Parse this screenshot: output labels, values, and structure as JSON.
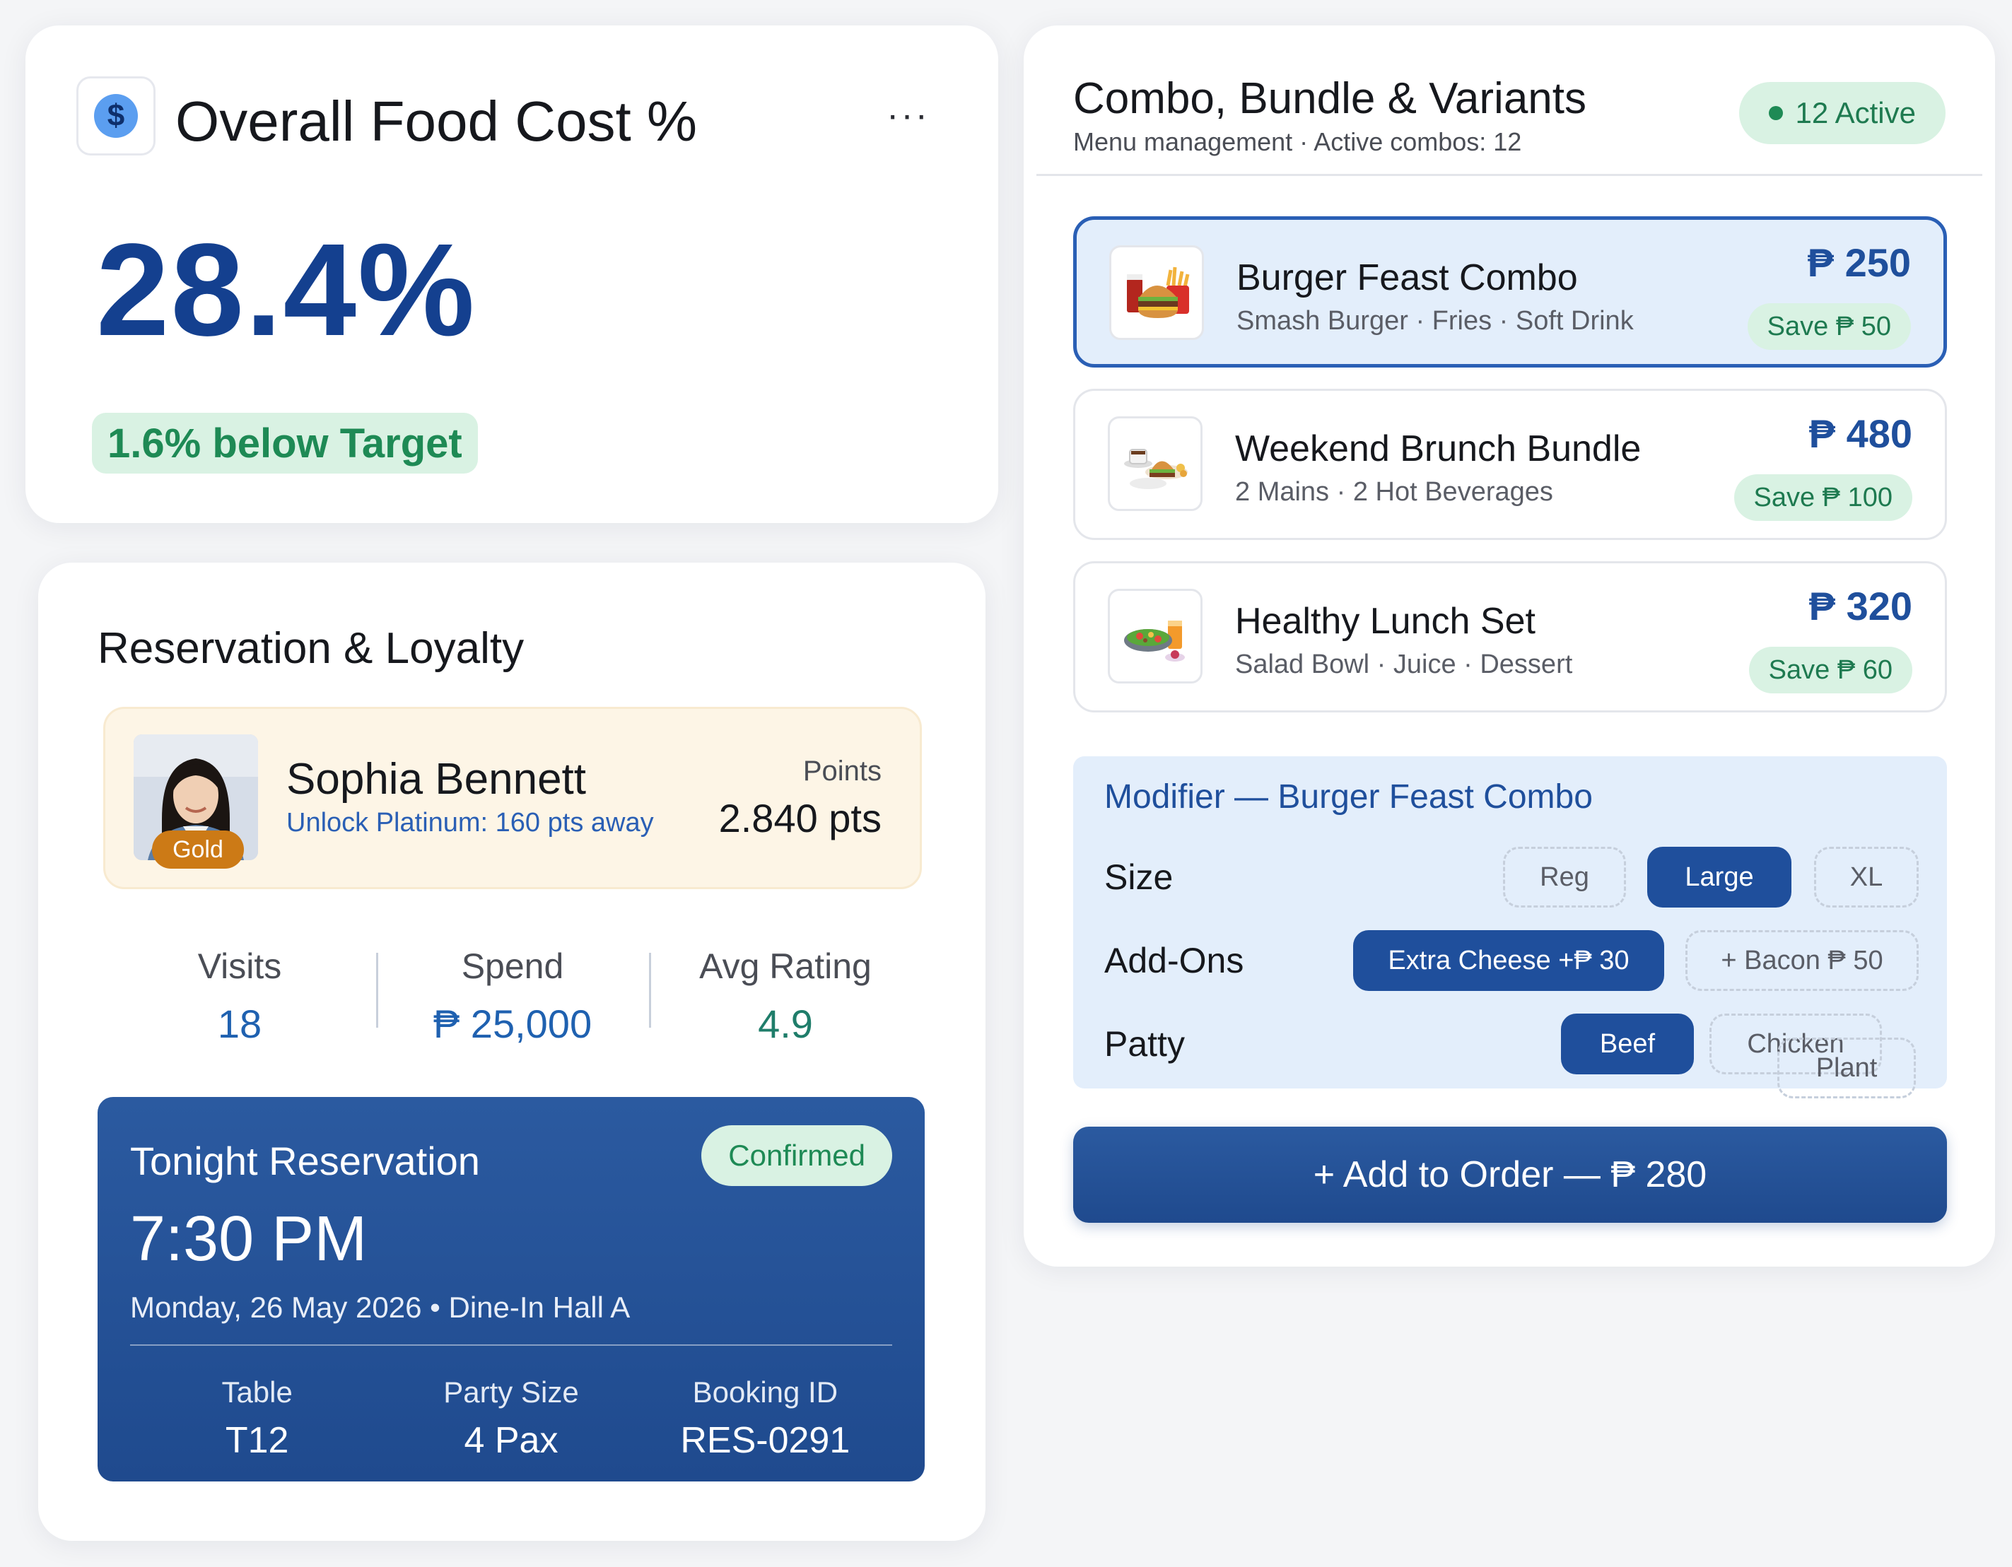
{
  "food_cost": {
    "title": "Overall Food Cost %",
    "value": "28.4%",
    "badge": "1.6% below Target",
    "menu_label": "···"
  },
  "reservation_loyalty": {
    "title": "Reservation & Loyalty",
    "member": {
      "name": "Sophia Bennett",
      "tier": "Gold",
      "unlock_text": "Unlock Platinum: 160 pts away",
      "points_label": "Points",
      "points_value": "2.840 pts"
    },
    "stats": [
      {
        "label": "Visits",
        "value": "18"
      },
      {
        "label": "Spend",
        "value": "₱ 25,000"
      },
      {
        "label": "Avg Rating",
        "value": "4.9"
      }
    ],
    "reservation": {
      "title": "Tonight Reservation",
      "status": "Confirmed",
      "time": "7:30 PM",
      "date_line": "Monday, 26 May 2026  •  Dine-In Hall A",
      "details": [
        {
          "label": "Table",
          "value": "T12"
        },
        {
          "label": "Party Size",
          "value": "4 Pax"
        },
        {
          "label": "Booking ID",
          "value": "RES-0291"
        }
      ]
    }
  },
  "combos": {
    "title": "Combo, Bundle & Variants",
    "subtitle": "Menu management · Active combos: 12",
    "active_badge": "12 Active",
    "items": [
      {
        "name": "Burger Feast Combo",
        "desc": "Smash Burger · Fries · Soft Drink",
        "price": "₱ 250",
        "save": "Save ₱ 50",
        "thumb_icon": "burger-combo-icon"
      },
      {
        "name": "Weekend Brunch Bundle",
        "desc": "2 Mains · 2 Hot Beverages",
        "price": "₱ 480",
        "save": "Save ₱ 100",
        "thumb_icon": "brunch-bundle-icon"
      },
      {
        "name": "Healthy Lunch Set",
        "desc": "Salad Bowl · Juice · Dessert",
        "price": "₱ 320",
        "save": "Save ₱ 60",
        "thumb_icon": "salad-set-icon"
      }
    ],
    "modifier": {
      "title": "Modifier — Burger Feast Combo",
      "rows": [
        {
          "label": "Size",
          "options": [
            "Reg",
            "Large",
            "XL"
          ],
          "selected": "Large"
        },
        {
          "label": "Add-Ons",
          "options": [
            "Extra Cheese  +₱ 30",
            "+ Bacon ₱ 50"
          ],
          "selected": "Extra Cheese  +₱ 30"
        },
        {
          "label": "Patty",
          "options": [
            "Beef",
            "Chicken",
            "Plant"
          ],
          "selected": "Beef"
        }
      ]
    },
    "add_button": "+ Add to Order —  ₱ 280"
  },
  "colors": {
    "primary": "#1f4f9c",
    "accent_blue": "#2a5fb5",
    "success_bg": "#d9f2e3",
    "success_text": "#1e8a55",
    "gold": "#cc7a16"
  }
}
